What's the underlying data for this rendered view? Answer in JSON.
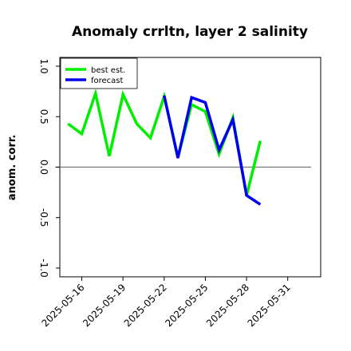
{
  "chart_data": {
    "type": "line",
    "title": "Anomaly crrltn, layer 2 salinity",
    "xlabel": "",
    "ylabel": "anom. corr.",
    "ylim": [
      -1.0,
      1.0
    ],
    "yticks": [
      "-1.0",
      "-0.5",
      "0.0",
      "0.5",
      "1.0"
    ],
    "xlim": [
      "2025-05-15",
      "2025-06-01"
    ],
    "xticks": [
      "2025-05-16",
      "2025-05-19",
      "2025-05-22",
      "2025-05-25",
      "2025-05-28",
      "2025-05-31"
    ],
    "highlighted_xtick": "2025-05-22",
    "zero_line": 0,
    "grid": false,
    "legend_position": "top-left",
    "series": [
      {
        "name": "best est.",
        "color": "#00ee00",
        "points": [
          [
            "2025-05-15",
            0.43
          ],
          [
            "2025-05-16",
            0.33
          ],
          [
            "2025-05-17",
            0.73
          ],
          [
            "2025-05-18",
            0.11
          ],
          [
            "2025-05-19",
            0.72
          ],
          [
            "2025-05-20",
            0.43
          ],
          [
            "2025-05-21",
            0.29
          ],
          [
            "2025-05-22",
            0.7
          ],
          [
            "2025-05-23",
            0.1
          ],
          [
            "2025-05-24",
            0.62
          ],
          [
            "2025-05-25",
            0.55
          ],
          [
            "2025-05-26",
            0.13
          ],
          [
            "2025-05-27",
            0.49
          ],
          [
            "2025-05-28",
            -0.28
          ],
          [
            "2025-05-29",
            0.26
          ]
        ]
      },
      {
        "name": "forecast",
        "color": "#0000ee",
        "points": [
          [
            "2025-05-22",
            0.71
          ],
          [
            "2025-05-23",
            0.09
          ],
          [
            "2025-05-24",
            0.69
          ],
          [
            "2025-05-25",
            0.64
          ],
          [
            "2025-05-26",
            0.17
          ],
          [
            "2025-05-27",
            0.47
          ],
          [
            "2025-05-28",
            -0.28
          ],
          [
            "2025-05-29",
            -0.37
          ]
        ]
      }
    ]
  }
}
